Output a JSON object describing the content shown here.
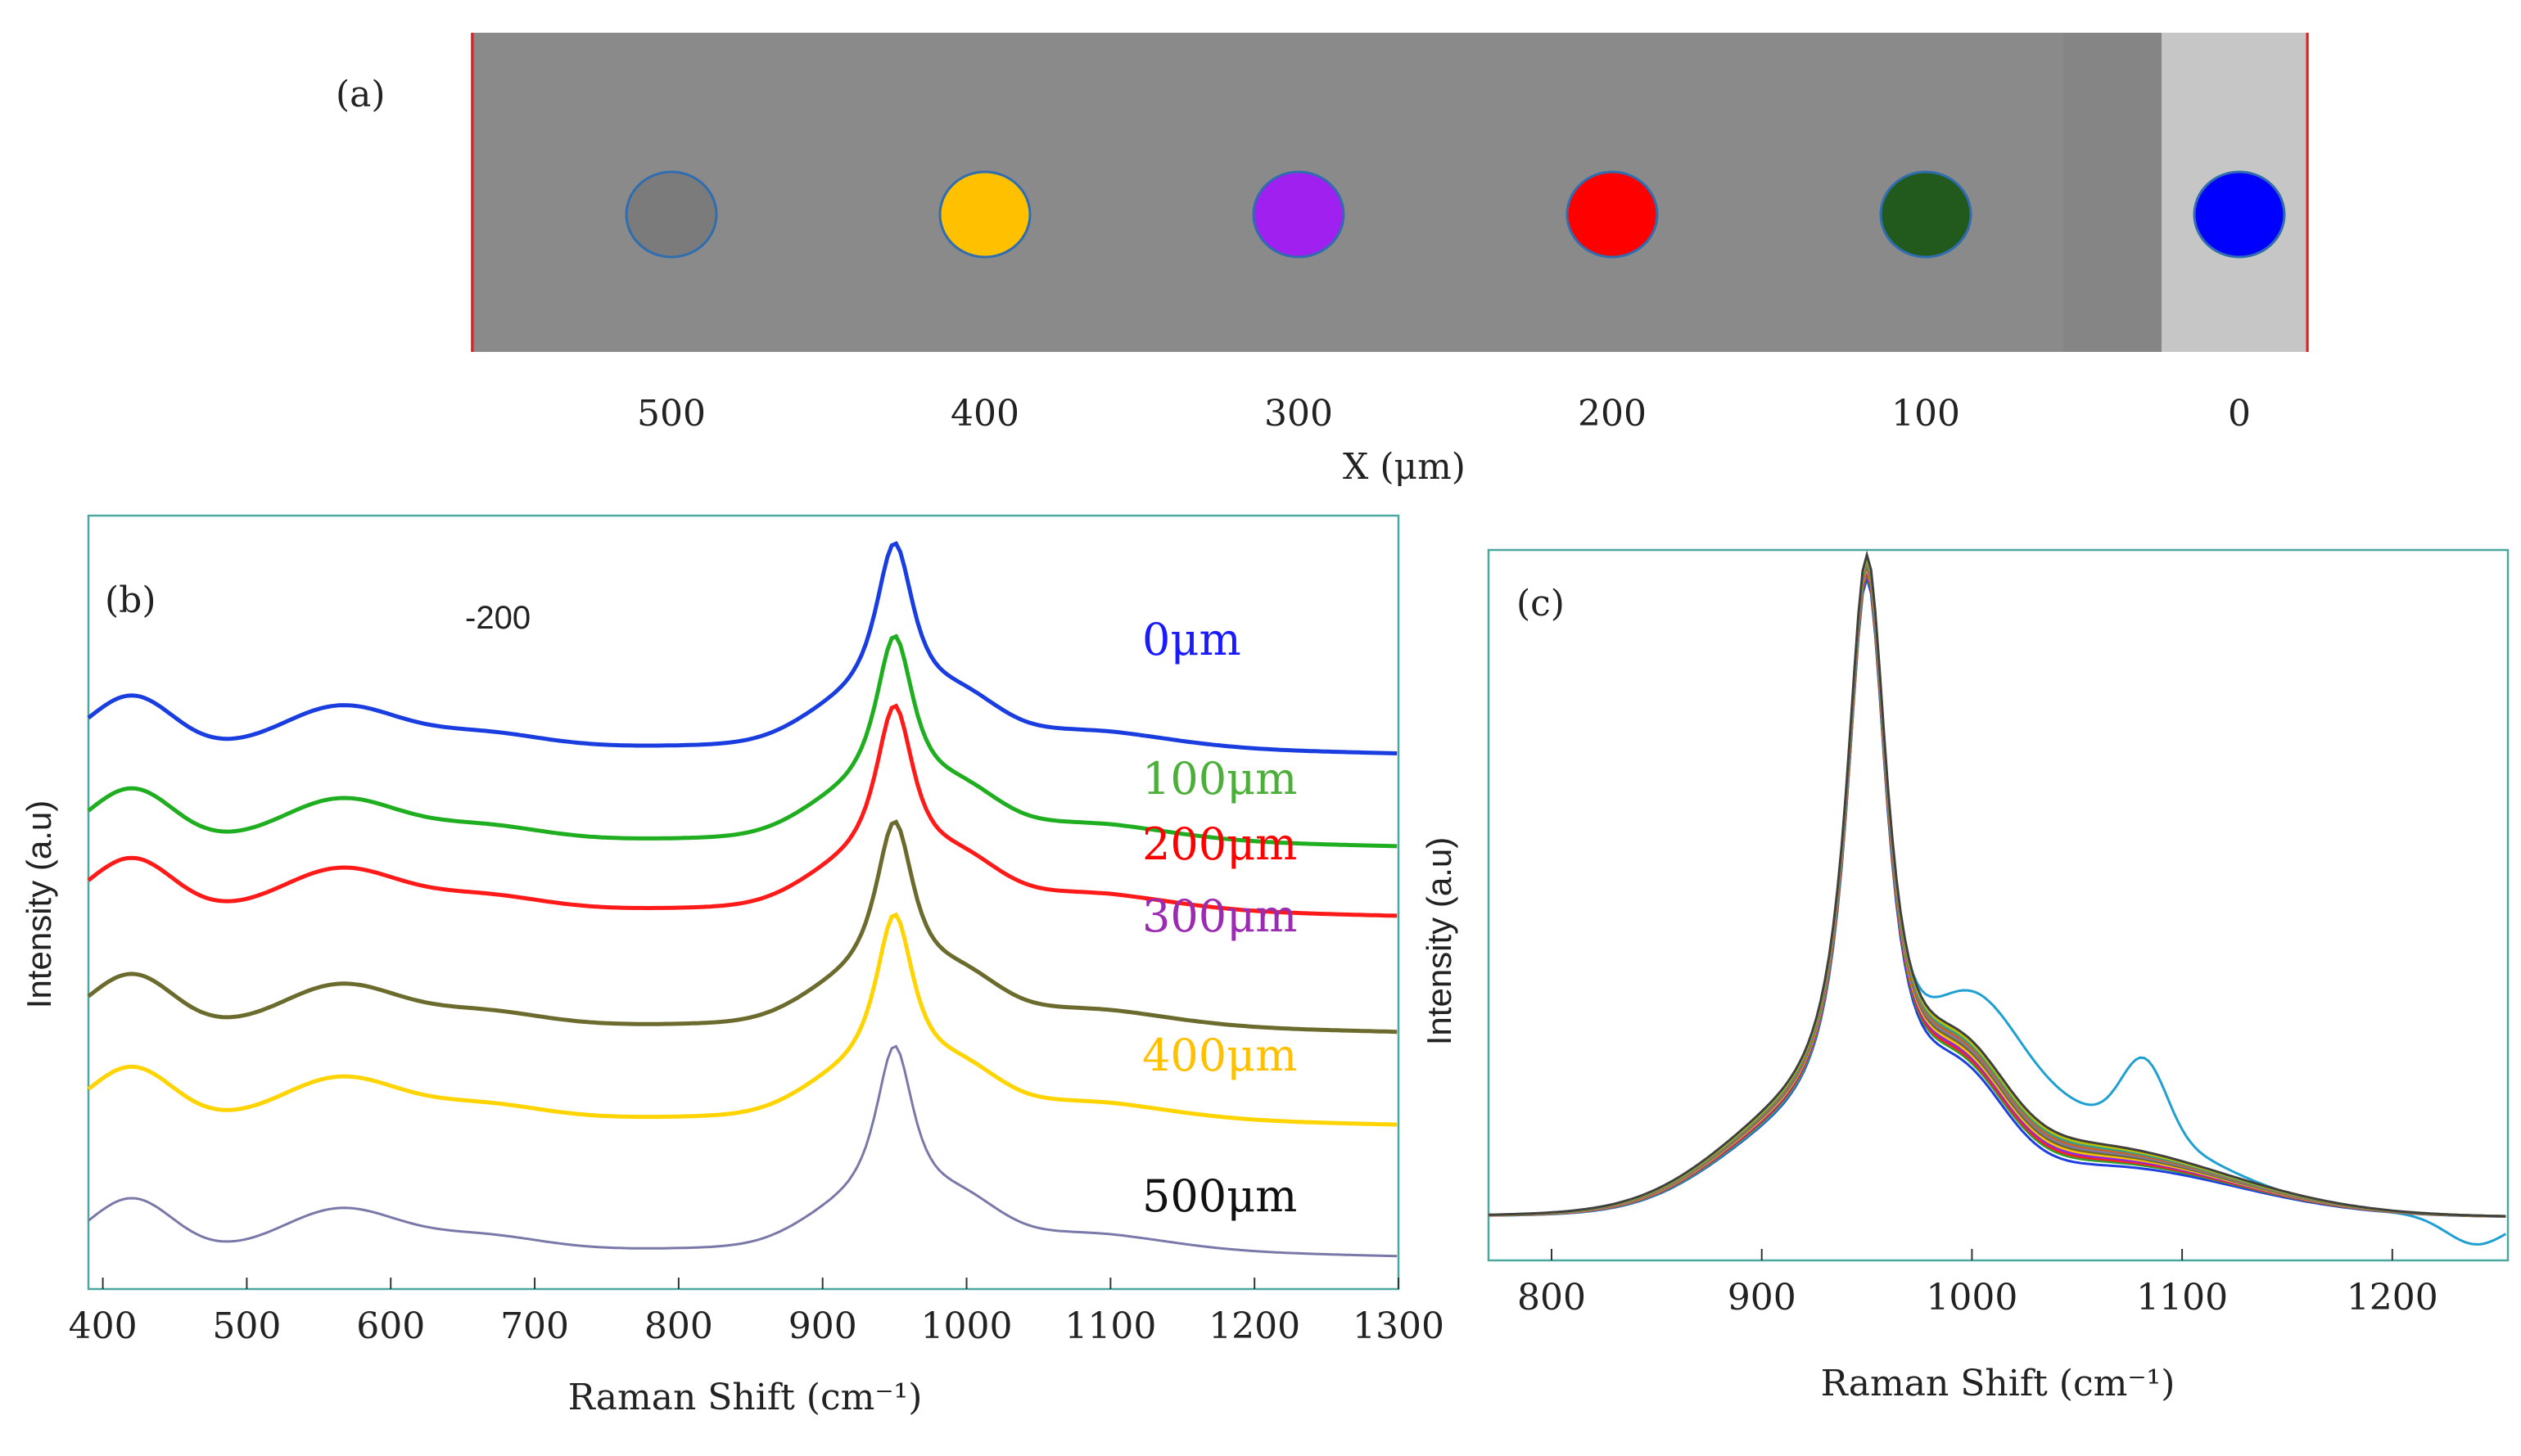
{
  "panel_a": {
    "label": "(a)",
    "xlabel": "X (μm)",
    "ticks": [
      "500",
      "400",
      "300",
      "200",
      "100",
      "0"
    ],
    "markers": [
      {
        "x_um": 500,
        "color": "#7b7b7b",
        "name": "500"
      },
      {
        "x_um": 400,
        "color": "#ffc000",
        "name": "400"
      },
      {
        "x_um": 300,
        "color": "#a020f0",
        "name": "300"
      },
      {
        "x_um": 200,
        "color": "#ff0000",
        "name": "200"
      },
      {
        "x_um": 100,
        "color": "#215a1c",
        "name": "100"
      },
      {
        "x_um": 0,
        "color": "#0000ff",
        "name": "0"
      }
    ]
  },
  "chart_data": [
    {
      "id": "b",
      "type": "line",
      "panel_label": "(b)",
      "annotation": "-200",
      "xlabel": "Raman Shift (cm⁻¹)",
      "ylabel": "Intensity (a.u)",
      "xlim": [
        390,
        1300
      ],
      "ylim": [
        0,
        100
      ],
      "x_ticks": [
        "400",
        "500",
        "600",
        "700",
        "800",
        "900",
        "1000",
        "1100",
        "1200",
        "1300"
      ],
      "x_tick_values": [
        400,
        500,
        600,
        700,
        800,
        900,
        1000,
        1100,
        1200,
        1300
      ],
      "series": [
        {
          "name": "0μm",
          "color": "#1a3de0",
          "label_color": "#1a1aff",
          "offset": 70,
          "width": 5
        },
        {
          "name": "100μm",
          "color": "#1fae1f",
          "label_color": "#4caf3a",
          "offset": 58,
          "width": 5
        },
        {
          "name": "200μm",
          "color": "#ff1a1a",
          "label_color": "#ff0000",
          "offset": 49,
          "width": 5
        },
        {
          "name": "300μm",
          "color": "#6b6b2e",
          "label_color": "#9b2bb0",
          "offset": 34,
          "width": 5
        },
        {
          "name": "400μm",
          "color": "#ffd400",
          "label_color": "#ffc000",
          "offset": 22,
          "width": 5
        },
        {
          "name": "500μm",
          "color": "#7a78a8",
          "label_color": "#111111",
          "offset": 5,
          "width": 3
        }
      ]
    },
    {
      "id": "c",
      "type": "line",
      "panel_label": "(c)",
      "xlabel": "Raman Shift (cm⁻¹)",
      "ylabel": "Intensity (a.u)",
      "xlim": [
        770,
        1255
      ],
      "ylim": [
        0,
        100
      ],
      "x_ticks": [
        "800",
        "900",
        "1000",
        "1100",
        "1200"
      ],
      "x_tick_values": [
        800,
        900,
        1000,
        1100,
        1200
      ],
      "series_colors": [
        "#1f3fe0",
        "#1fa0d0",
        "#2ca02c",
        "#ff2020",
        "#8a2be2",
        "#ffc000",
        "#6b6b2e",
        "#7a7aa8",
        "#d06020",
        "#30a090",
        "#c0c000",
        "#404040"
      ]
    }
  ]
}
